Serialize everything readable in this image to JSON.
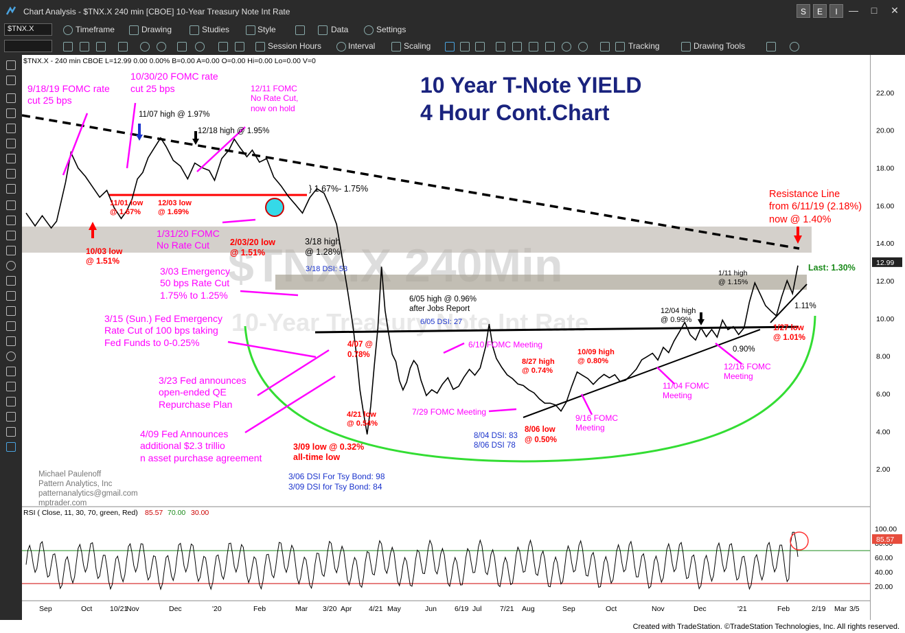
{
  "window": {
    "title": "Chart Analysis - $TNX.X 240 min [CBOE] 10-Year Treasury Note Int Rate",
    "buttons": [
      "S",
      "E",
      "I"
    ]
  },
  "toolbar1": {
    "symbol": "$TNX.X",
    "items": [
      "Timeframe",
      "Drawing",
      "Studies",
      "Style",
      "Data",
      "Settings"
    ]
  },
  "toolbar2": {
    "items": [
      "Session Hours",
      "Interval",
      "Scaling",
      "Tracking",
      "Drawing Tools"
    ]
  },
  "status_line": "$TNX.X - 240 min  CBOE  L=12.99  0.00  0.00%  B=0.00  A=0.00  O=0.00  Hi=0.00  Lo=0.00  V=0",
  "watermark": {
    "line1": "$TNX.X 240Min",
    "line2": "10-Year Treasury Note Int Rate"
  },
  "chart_data": {
    "type": "line",
    "title": "10 Year T-Note YIELD",
    "subtitle": "4 Hour Cont.Chart",
    "ylim": [
      0,
      24
    ],
    "y_ticks": [
      "22.00",
      "20.00",
      "18.00",
      "16.00",
      "14.00",
      "12.00",
      "10.00",
      "8.00",
      "6.00",
      "4.00",
      "2.00"
    ],
    "last_price_label": "12.99",
    "x_ticks": [
      "Sep",
      "Oct",
      "10/21",
      "Nov",
      "Dec",
      "'20",
      "Feb",
      "Mar",
      "3/20",
      "Apr",
      "4/21",
      "May",
      "Jun",
      "6/19",
      "Jul",
      "7/21",
      "Aug",
      "Sep",
      "Oct",
      "Nov",
      "Dec",
      "'21",
      "Feb",
      "2/19",
      "Mar",
      "3/5"
    ],
    "series": [
      {
        "values": [
          [
            0,
            15.6
          ],
          [
            5,
            15.0
          ],
          [
            9,
            15.5
          ],
          [
            14,
            14.7
          ],
          [
            17,
            15.1
          ],
          [
            22,
            17.2
          ],
          [
            25,
            18.7
          ],
          [
            29,
            17.9
          ],
          [
            33,
            17.5
          ],
          [
            37,
            17.0
          ],
          [
            41,
            16.5
          ],
          [
            45,
            16.9
          ],
          [
            49,
            16.0
          ],
          [
            53,
            15.4
          ],
          [
            56,
            15.8
          ],
          [
            59,
            16.3
          ],
          [
            62,
            17.3
          ],
          [
            65,
            17.7
          ],
          [
            68,
            18.6
          ],
          [
            71,
            19.1
          ],
          [
            75,
            19.7
          ],
          [
            78,
            19.2
          ],
          [
            82,
            18.5
          ],
          [
            86,
            18.2
          ],
          [
            90,
            17.5
          ],
          [
            94,
            18.3
          ],
          [
            98,
            18.0
          ],
          [
            102,
            17.8
          ],
          [
            105,
            17.4
          ],
          [
            109,
            18.5
          ],
          [
            113,
            18.9
          ],
          [
            116,
            19.6
          ],
          [
            119,
            19.2
          ],
          [
            123,
            18.7
          ],
          [
            126,
            19.0
          ],
          [
            130,
            18.4
          ],
          [
            134,
            18.6
          ],
          [
            138,
            17.6
          ],
          [
            142,
            17.1
          ],
          [
            146,
            16.5
          ],
          [
            150,
            16.0
          ],
          [
            154,
            15.5
          ],
          [
            158,
            16.3
          ],
          [
            162,
            16.8
          ],
          [
            166,
            16.6
          ],
          [
            169,
            15.9
          ],
          [
            173,
            14.9
          ],
          [
            176,
            13.2
          ],
          [
            179,
            11.6
          ],
          [
            182,
            9.8
          ],
          [
            184,
            8.0
          ],
          [
            186,
            6.3
          ],
          [
            188,
            4.9
          ],
          [
            190,
            3.9
          ],
          [
            192,
            5.3
          ],
          [
            194,
            7.5
          ],
          [
            196,
            9.5
          ],
          [
            198,
            12.7
          ],
          [
            200,
            10.5
          ],
          [
            202,
            9.1
          ],
          [
            204,
            8.2
          ],
          [
            206,
            7.6
          ],
          [
            208,
            6.8
          ],
          [
            210,
            6.1
          ],
          [
            212,
            6.7
          ],
          [
            214,
            7.3
          ],
          [
            216,
            7.8
          ],
          [
            218,
            7.5
          ],
          [
            220,
            6.7
          ],
          [
            223,
            6.0
          ],
          [
            226,
            6.3
          ],
          [
            229,
            6.0
          ],
          [
            232,
            6.4
          ],
          [
            235,
            6.8
          ],
          [
            238,
            6.3
          ],
          [
            241,
            6.5
          ],
          [
            244,
            6.9
          ],
          [
            247,
            7.2
          ],
          [
            250,
            6.9
          ],
          [
            253,
            7.4
          ],
          [
            256,
            8.6
          ],
          [
            258,
            9.6
          ],
          [
            260,
            8.6
          ],
          [
            262,
            7.8
          ],
          [
            265,
            7.3
          ],
          [
            268,
            7.0
          ],
          [
            271,
            6.9
          ],
          [
            274,
            6.6
          ],
          [
            277,
            6.4
          ],
          [
            280,
            6.1
          ],
          [
            283,
            6.0
          ],
          [
            286,
            5.8
          ],
          [
            289,
            5.6
          ],
          [
            292,
            5.5
          ],
          [
            295,
            5.3
          ],
          [
            298,
            5.0
          ],
          [
            301,
            5.6
          ],
          [
            304,
            6.5
          ],
          [
            307,
            7.2
          ],
          [
            310,
            6.9
          ],
          [
            313,
            6.7
          ],
          [
            316,
            6.5
          ],
          [
            319,
            6.9
          ],
          [
            322,
            7.1
          ],
          [
            325,
            6.8
          ],
          [
            328,
            6.9
          ],
          [
            331,
            6.6
          ],
          [
            334,
            6.8
          ],
          [
            337,
            7.1
          ],
          [
            340,
            7.3
          ],
          [
            343,
            7.7
          ],
          [
            346,
            7.9
          ],
          [
            349,
            8.2
          ],
          [
            352,
            7.9
          ],
          [
            355,
            8.5
          ],
          [
            358,
            8.1
          ],
          [
            361,
            8.7
          ],
          [
            364,
            9.3
          ],
          [
            367,
            9.9
          ],
          [
            370,
            9.2
          ],
          [
            373,
            8.8
          ],
          [
            376,
            9.4
          ],
          [
            379,
            9.0
          ],
          [
            382,
            9.5
          ],
          [
            385,
            9.1
          ],
          [
            388,
            9.9
          ],
          [
            391,
            9.3
          ],
          [
            394,
            9.5
          ],
          [
            397,
            9.2
          ],
          [
            400,
            9.6
          ],
          [
            403,
            10.9
          ],
          [
            406,
            11.8
          ],
          [
            409,
            11.2
          ],
          [
            412,
            10.7
          ],
          [
            415,
            10.5
          ],
          [
            418,
            10.2
          ],
          [
            421,
            11.1
          ],
          [
            424,
            11.9
          ],
          [
            427,
            11.3
          ],
          [
            430,
            12.9
          ]
        ]
      }
    ],
    "levels": {
      "resistance_zone": [
        14.0,
        15.2
      ],
      "zone_1_30": [
        12.3,
        11.6
      ],
      "line_1_67": 16.8,
      "neckline": 9.5
    },
    "annotations": {
      "a01": "9/18/19 FOMC rate cut 25 bps",
      "a02": "10/30/20 FOMC rate cut 25 bps",
      "a03": "11/07 high @ 1.97%",
      "a04": "12/18 high @ 1.95%",
      "a05": "12/11 FOMC No Rate Cut, now on hold",
      "a06": "} 1.67%- 1.75%",
      "a07": "11/01 low @ 1.67%",
      "a08": "12/03 low @ 1.69%",
      "a09": "1/31/20 FOMC No Rate Cut",
      "a10": "10/03 low @ 1.51%",
      "a11": "2/03/20 low @ 1.51%",
      "a12": "3/18 high @ 1.28%",
      "a13": "3/18 DSI: 53",
      "a14": "3/03 Emergency 50 bps Rate Cut 1.75% to 1.25%",
      "a15": "3/15 (Sun.) Fed Emergency Rate Cut of 100 bps taking Fed Funds to 0-0.25%",
      "a16": "3/23 Fed announces open-ended QE Repurchase Plan",
      "a17": "4/09 Fed Announces additional $2.3 trillion asset purchase agreement",
      "a18": "4/07 @ 0.78%",
      "a19": "4/21 low @ 0.54%",
      "a20": "3/09 low @ 0.32% all-time low",
      "a21": "3/06 DSI For Tsy Bond: 98",
      "a22": "3/09 DSI for Tsy Bond: 84",
      "a23": "6/05 high @ 0.96% after Jobs Report",
      "a24": "6/05 DSI: 27",
      "a25": "6/10 FOMC Meeting",
      "a26": "7/29 FOMC Meeting",
      "a27": "8/04 DSI: 83",
      "a28": "8/06 DSI 78",
      "a29": "8/06 low @ 0.50%",
      "a30": "8/27 high @ 0.74%",
      "a31": "10/09 high @ 0.80%",
      "a32": "9/16 FOMC Meeting",
      "a33": "11/04 FOMC Meeting",
      "a34": "12/04 high @ 0.99%",
      "a35": "0.90%",
      "a36": "12/16 FOMC Meeting",
      "a37": "1/11 high @ 1.15%",
      "a38": "1/27 low @ 1.01%",
      "a39": "1.11%",
      "a40": "Last: 1.30%",
      "a41": "Resistance Line from 6/11/19 (2.18%) now @ 1.40%",
      "a42": "Michael Paulenoff",
      "a43": "Pattern Analytics, Inc",
      "a44": "patternanalytics@gmail.com",
      "a45": "mptrader.com"
    },
    "rsi": {
      "label": "RSI ( Close, 11, 30, 70, green, Red)",
      "v1": "85.57",
      "v2": "70.00",
      "v3": "30.00",
      "last": "85.57",
      "ticks": [
        "100.00",
        "80.00",
        "60.00",
        "40.00",
        "20.00"
      ],
      "ylim": [
        0,
        100
      ],
      "upper": 70,
      "lower": 30
    }
  },
  "footer": "Created with TradeStation. ©TradeStation Technologies, Inc. All rights reserved."
}
